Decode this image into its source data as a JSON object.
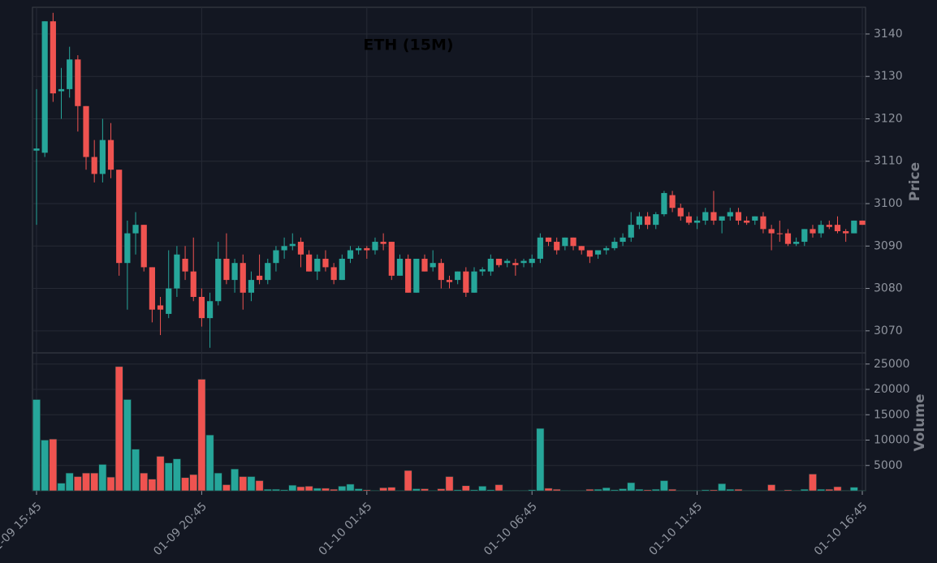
{
  "chart_data": {
    "type": "candlestick",
    "title": "ETH (15M)",
    "ylabel": "Price",
    "volume_label": "Volume",
    "x": [
      "01-09 15:45",
      "01-09 16:00",
      "01-09 16:15",
      "01-09 16:30",
      "01-09 16:45",
      "01-09 17:00",
      "01-09 17:15",
      "01-09 17:30",
      "01-09 17:45",
      "01-09 18:00",
      "01-09 18:15",
      "01-09 18:30",
      "01-09 18:45",
      "01-09 19:00",
      "01-09 19:15",
      "01-09 19:30",
      "01-09 19:45",
      "01-09 20:00",
      "01-09 20:15",
      "01-09 20:30",
      "01-09 20:45",
      "01-09 21:00",
      "01-09 21:15",
      "01-09 21:30",
      "01-09 21:45",
      "01-09 22:00",
      "01-09 22:15",
      "01-09 22:30",
      "01-09 22:45",
      "01-09 23:00",
      "01-09 23:15",
      "01-09 23:30",
      "01-09 23:45",
      "01-10 00:00",
      "01-10 00:15",
      "01-10 00:30",
      "01-10 00:45",
      "01-10 01:00",
      "01-10 01:15",
      "01-10 01:30",
      "01-10 01:45",
      "01-10 02:00",
      "01-10 02:15",
      "01-10 02:30",
      "01-10 02:45",
      "01-10 03:00",
      "01-10 03:15",
      "01-10 03:30",
      "01-10 03:45",
      "01-10 04:00",
      "01-10 04:15",
      "01-10 04:30",
      "01-10 04:45",
      "01-10 05:00",
      "01-10 05:15",
      "01-10 05:30",
      "01-10 05:45",
      "01-10 06:00",
      "01-10 06:15",
      "01-10 06:30",
      "01-10 06:45",
      "01-10 07:00",
      "01-10 07:15",
      "01-10 07:30",
      "01-10 07:45",
      "01-10 08:00",
      "01-10 08:15",
      "01-10 08:30",
      "01-10 08:45",
      "01-10 09:00",
      "01-10 09:15",
      "01-10 09:30",
      "01-10 09:45",
      "01-10 10:00",
      "01-10 10:15",
      "01-10 10:30",
      "01-10 10:45",
      "01-10 11:00",
      "01-10 11:15",
      "01-10 11:30",
      "01-10 11:45",
      "01-10 12:00",
      "01-10 12:15",
      "01-10 12:30",
      "01-10 12:45",
      "01-10 13:00",
      "01-10 13:15",
      "01-10 13:30",
      "01-10 13:45",
      "01-10 14:00",
      "01-10 14:15",
      "01-10 14:30",
      "01-10 14:45",
      "01-10 15:00",
      "01-10 15:15",
      "01-10 15:30",
      "01-10 15:45",
      "01-10 16:00",
      "01-10 16:15",
      "01-10 16:30",
      "01-10 16:45"
    ],
    "open": [
      3112.5,
      3112,
      3143,
      3126.5,
      3127,
      3134,
      3123,
      3111,
      3107,
      3115,
      3108,
      3086,
      3093,
      3095,
      3085,
      3076,
      3074,
      3080,
      3087,
      3084,
      3078,
      3073,
      3077,
      3087,
      3082,
      3086,
      3079,
      3083,
      3082,
      3086,
      3089,
      3090,
      3091,
      3088,
      3084,
      3087,
      3085,
      3082,
      3087,
      3089,
      3089.5,
      3089,
      3091,
      3091,
      3083,
      3087,
      3079,
      3087,
      3085,
      3086,
      3082,
      3082,
      3084,
      3079,
      3084,
      3084,
      3087,
      3086,
      3086,
      3086,
      3086,
      3087,
      3092,
      3091,
      3090,
      3092,
      3090,
      3089,
      3088,
      3089,
      3089.5,
      3091,
      3092,
      3095,
      3097,
      3095,
      3097.5,
      3102,
      3099,
      3097,
      3095.5,
      3096,
      3098,
      3096,
      3097,
      3098,
      3096,
      3096,
      3097,
      3094,
      3093,
      3093,
      3090.5,
      3091,
      3094,
      3093,
      3095,
      3095,
      3093.5,
      3093,
      3096
    ],
    "high": [
      3127,
      3143,
      3145,
      3132,
      3137,
      3135,
      3123,
      3115,
      3120,
      3119,
      3108,
      3096,
      3098,
      3095,
      3085,
      3078,
      3089,
      3090,
      3090,
      3092,
      3080,
      3079,
      3091,
      3093,
      3087,
      3088,
      3084,
      3088,
      3087,
      3090,
      3092,
      3093,
      3092,
      3089,
      3088,
      3089,
      3086,
      3088,
      3090,
      3090,
      3090,
      3092,
      3093,
      3091,
      3088,
      3088,
      3087,
      3088,
      3089,
      3087,
      3083,
      3084,
      3085,
      3085,
      3085,
      3088,
      3087,
      3087,
      3087,
      3087,
      3088,
      3093,
      3092,
      3092,
      3092,
      3092,
      3090,
      3089,
      3089,
      3090,
      3092,
      3093,
      3098,
      3098,
      3098,
      3098,
      3103,
      3103,
      3100,
      3098,
      3097,
      3099,
      3103,
      3097,
      3099,
      3099,
      3097,
      3097,
      3098,
      3095,
      3096,
      3094,
      3092,
      3094,
      3095,
      3096,
      3096,
      3097,
      3094,
      3096,
      3096
    ],
    "low": [
      3095,
      3111,
      3124,
      3120,
      3125,
      3117,
      3108,
      3105,
      3105,
      3106,
      3083,
      3075,
      3088,
      3084,
      3072,
      3069,
      3073,
      3078,
      3082,
      3077,
      3071,
      3066,
      3076,
      3081,
      3079,
      3075,
      3077,
      3081,
      3081,
      3084,
      3087,
      3089,
      3085,
      3084,
      3082,
      3084,
      3081,
      3082,
      3086,
      3088,
      3087,
      3088,
      3089,
      3082,
      3083,
      3079,
      3079,
      3084,
      3084,
      3080,
      3080,
      3081,
      3078,
      3079,
      3083,
      3083,
      3085,
      3085,
      3083,
      3085,
      3085,
      3086,
      3090,
      3088,
      3089,
      3089,
      3088,
      3086,
      3087,
      3088,
      3089,
      3090,
      3091,
      3094,
      3094,
      3094,
      3097,
      3098,
      3096,
      3095,
      3094,
      3095,
      3095,
      3093,
      3096,
      3095,
      3095,
      3095,
      3093,
      3089,
      3091,
      3090,
      3090,
      3090,
      3092,
      3092,
      3094,
      3093,
      3091,
      3093,
      3095
    ],
    "close": [
      3113,
      3143,
      3126,
      3127,
      3134,
      3123,
      3111,
      3107,
      3115,
      3108,
      3086,
      3093,
      3095,
      3085,
      3075,
      3075,
      3080,
      3088,
      3084,
      3078,
      3073,
      3077,
      3087,
      3082,
      3086,
      3079,
      3082,
      3082,
      3086,
      3089,
      3090,
      3090.5,
      3088,
      3084,
      3087,
      3085,
      3082,
      3087,
      3089,
      3089.5,
      3089,
      3091,
      3090.5,
      3083,
      3087,
      3079,
      3087,
      3084,
      3086,
      3082,
      3081.5,
      3084,
      3079,
      3084,
      3084.5,
      3087,
      3085.5,
      3086.5,
      3085.5,
      3086.5,
      3087,
      3092,
      3091,
      3089,
      3092,
      3090,
      3089,
      3087.5,
      3089,
      3089.5,
      3091,
      3092,
      3095,
      3097,
      3095,
      3097.5,
      3102.5,
      3099,
      3097,
      3095.5,
      3096,
      3098,
      3096,
      3097,
      3098,
      3096,
      3095.5,
      3097,
      3094,
      3093,
      3092.8,
      3090.5,
      3091,
      3094,
      3093,
      3095,
      3094.5,
      3093.5,
      3093,
      3096,
      3095
    ],
    "volume": [
      18000,
      10000,
      10200,
      1500,
      3500,
      2800,
      3500,
      3500,
      5200,
      2700,
      24500,
      18000,
      8200,
      3500,
      2300,
      6800,
      5500,
      6300,
      2600,
      3200,
      22000,
      11000,
      3500,
      1200,
      4300,
      2800,
      2800,
      2000,
      300,
      300,
      200,
      1100,
      800,
      900,
      500,
      500,
      300,
      900,
      1300,
      400,
      200,
      100,
      600,
      700,
      100,
      4000,
      400,
      400,
      100,
      400,
      2800,
      200,
      1000,
      200,
      900,
      200,
      1200,
      100,
      100,
      100,
      200,
      12300,
      500,
      300,
      100,
      100,
      100,
      300,
      300,
      600,
      200,
      400,
      1600,
      300,
      200,
      300,
      2000,
      300,
      100,
      100,
      100,
      200,
      200,
      1400,
      300,
      300,
      100,
      100,
      100,
      1200,
      100,
      200,
      100,
      300,
      3300,
      300,
      300,
      800,
      100,
      700,
      100
    ],
    "ylim": [
      3064.8,
      3146.3
    ],
    "yticks": [
      3070,
      3080,
      3090,
      3100,
      3110,
      3120,
      3130,
      3140
    ],
    "volume_ylim": [
      0,
      27200
    ],
    "volume_yticks": [
      5000,
      10000,
      15000,
      20000,
      25000
    ],
    "xticks": [
      "01-09 15:45",
      "01-09 20:45",
      "01-10 01:45",
      "01-10 06:45",
      "01-10 11:45",
      "01-10 16:45"
    ],
    "up_color": "#26a69a",
    "down_color": "#ef5350",
    "grid": true
  }
}
